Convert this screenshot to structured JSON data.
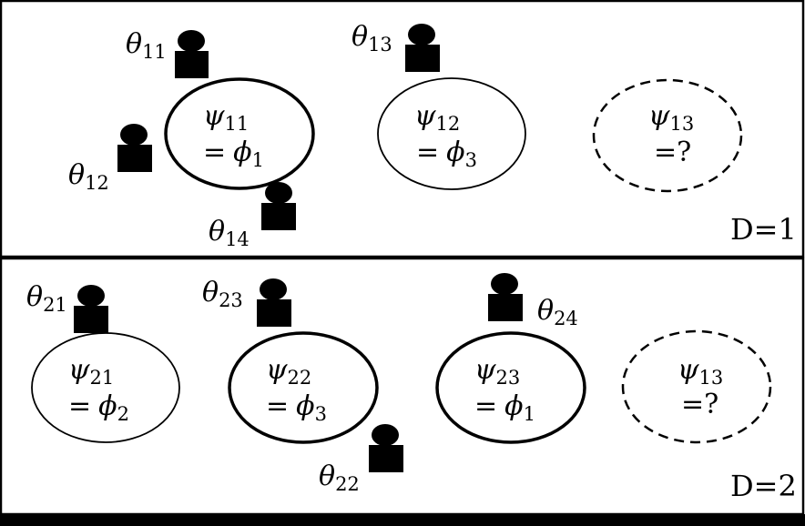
{
  "colors": {
    "ink": "#000000",
    "background": "#ffffff"
  },
  "icons": {
    "person": "person-icon"
  },
  "panels": [
    {
      "label": "D=1",
      "tables": [
        {
          "psi": "ψ",
          "psi_sub": "11",
          "eq": "=",
          "phi": "ϕ",
          "phi_sub": "1",
          "style": "bold",
          "qmark": ""
        },
        {
          "psi": "ψ",
          "psi_sub": "12",
          "eq": "=",
          "phi": "ϕ",
          "phi_sub": "3",
          "style": "thin",
          "qmark": ""
        },
        {
          "psi": "ψ",
          "psi_sub": "13",
          "eq": "",
          "phi": "",
          "phi_sub": "",
          "style": "dashed",
          "qmark": "=?"
        }
      ],
      "customers": [
        {
          "theta": "θ",
          "sub": "11"
        },
        {
          "theta": "θ",
          "sub": "12"
        },
        {
          "theta": "θ",
          "sub": "13"
        },
        {
          "theta": "θ",
          "sub": "14"
        }
      ]
    },
    {
      "label": "D=2",
      "tables": [
        {
          "psi": "ψ",
          "psi_sub": "21",
          "eq": "=",
          "phi": "ϕ",
          "phi_sub": "2",
          "style": "thin",
          "qmark": ""
        },
        {
          "psi": "ψ",
          "psi_sub": "22",
          "eq": "=",
          "phi": "ϕ",
          "phi_sub": "3",
          "style": "bold",
          "qmark": ""
        },
        {
          "psi": "ψ",
          "psi_sub": "23",
          "eq": "=",
          "phi": "ϕ",
          "phi_sub": "1",
          "style": "bold",
          "qmark": ""
        },
        {
          "psi": "ψ",
          "psi_sub": "13",
          "eq": "",
          "phi": "",
          "phi_sub": "",
          "style": "dashed",
          "qmark": "=?"
        }
      ],
      "customers": [
        {
          "theta": "θ",
          "sub": "21"
        },
        {
          "theta": "θ",
          "sub": "23"
        },
        {
          "theta": "θ",
          "sub": "24"
        },
        {
          "theta": "θ",
          "sub": "22"
        }
      ]
    }
  ]
}
